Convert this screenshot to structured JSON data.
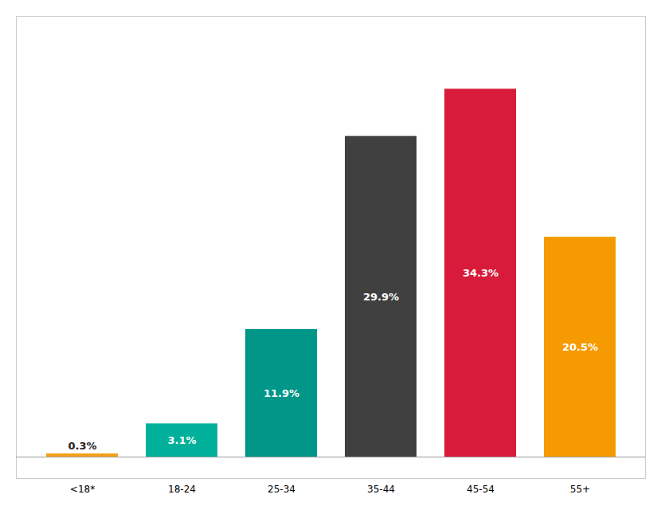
{
  "chart_data": {
    "type": "bar",
    "categories": [
      "<18*",
      "18-24",
      "25-34",
      "35-44",
      "45-54",
      "55+"
    ],
    "values": [
      0.3,
      3.1,
      11.9,
      29.9,
      34.3,
      20.5
    ],
    "value_labels": [
      "0.3%",
      "3.1%",
      "11.9%",
      "29.9%",
      "34.3%",
      "20.5%"
    ],
    "colors": [
      "#F5A01A",
      "#00B09A",
      "#009688",
      "#404040",
      "#D81B3A",
      "#F59A00"
    ],
    "ylim": [
      -2.0,
      41.09
    ],
    "data_labels": true,
    "tick_labels": "x",
    "grid": false
  }
}
